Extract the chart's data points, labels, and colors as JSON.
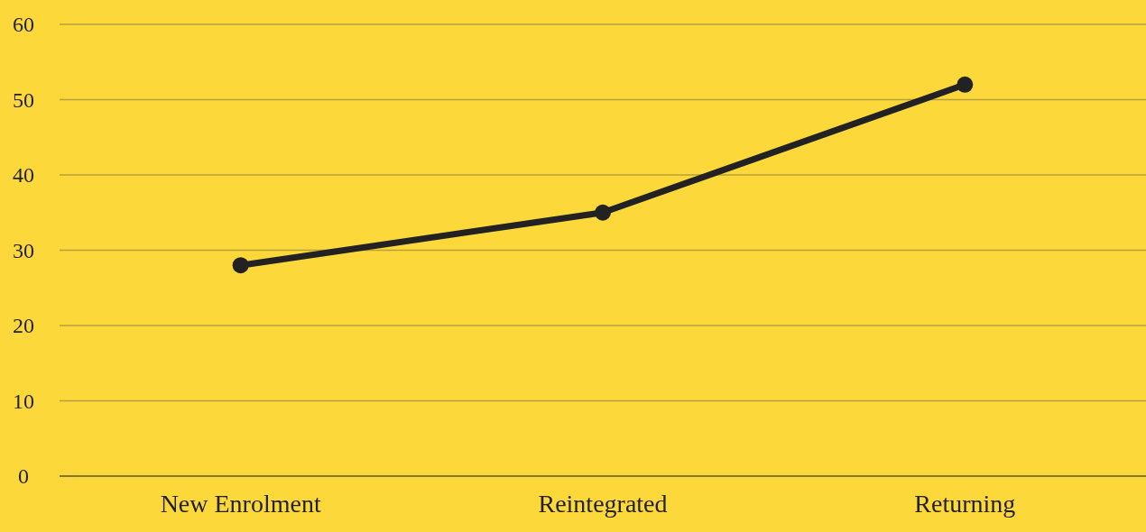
{
  "chart_data": {
    "type": "line",
    "categories": [
      "New Enrolment",
      "Reintegrated",
      "Returning"
    ],
    "series": [
      {
        "color": "#222222",
        "values": [
          28,
          35,
          52
        ]
      }
    ],
    "ylim": [
      0,
      60
    ],
    "yticks": [
      0,
      10,
      20,
      30,
      40,
      50,
      60
    ],
    "grid": "y",
    "marker": "circle",
    "line_style": "solid"
  }
}
